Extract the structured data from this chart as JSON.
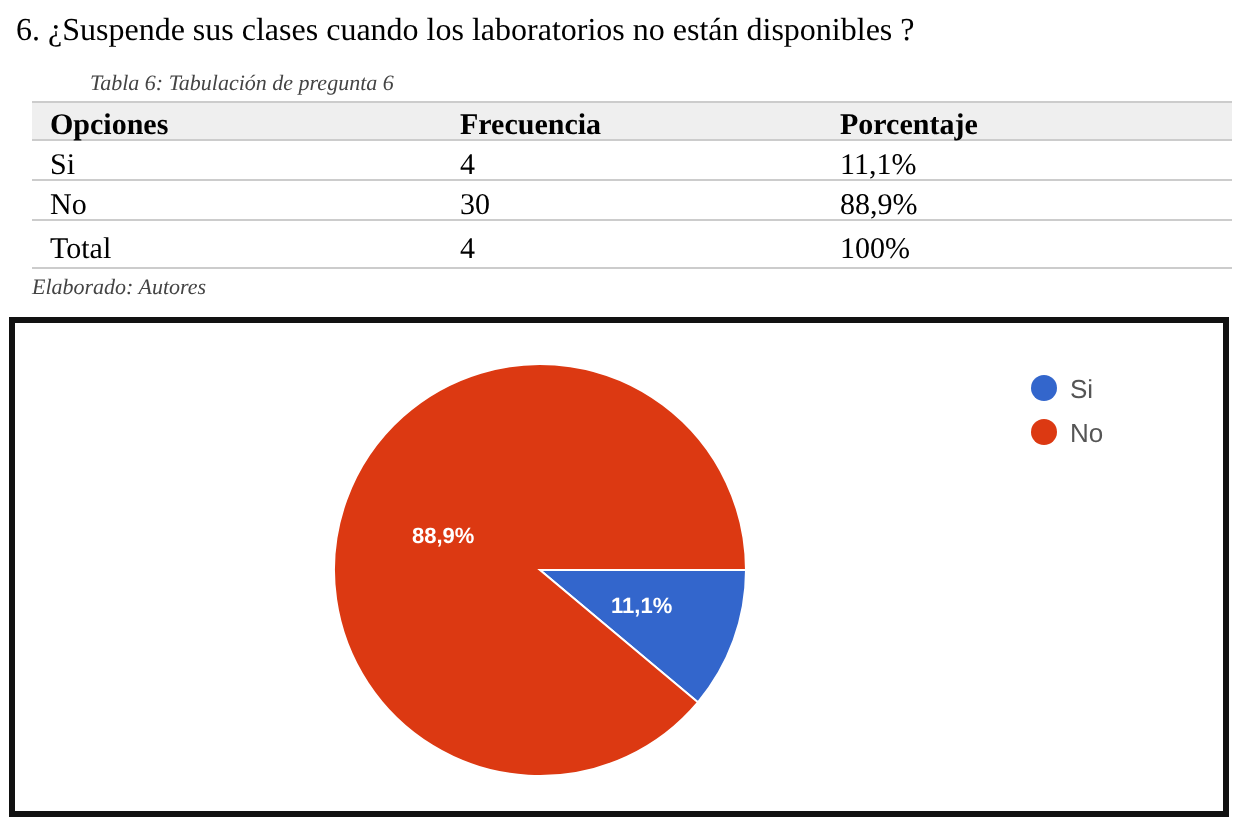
{
  "chart_data": {
    "type": "pie",
    "title": "6.   ¿Suspende sus clases cuando los laboratorios no están disponibles ?",
    "subtitle": "Tabla 6: Tabulación de pregunta 6",
    "annotations": [
      "Opciones",
      "Frecuencia",
      "Porcentaje",
      "Si",
      "4",
      "11,1%",
      "No",
      "30",
      "88,9%",
      "Total",
      "4",
      "100%",
      "Elaborado: Autores"
    ],
    "categories": [
      "Si",
      "No"
    ],
    "values": [
      11.1,
      88.9
    ],
    "colors": [
      "#3366cc",
      "#dc3912"
    ],
    "value_labels": [
      "11,1%",
      "88,9%"
    ],
    "legend": "top right"
  }
}
